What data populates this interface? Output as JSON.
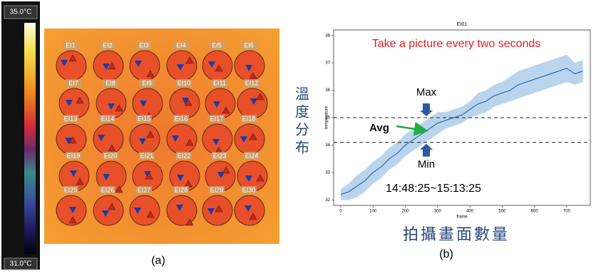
{
  "thermal_image": {
    "colorbar_max": "35.0°C",
    "colorbar_min": "31.0°C",
    "labels": [
      "EI1",
      "EI2",
      "EI3",
      "EI4",
      "EI5",
      "EI6",
      "EI7",
      "EI8",
      "EI9",
      "EI10",
      "EI11",
      "EI12",
      "EI13",
      "EI14",
      "EI15",
      "EI16",
      "EI17",
      "EI18",
      "EI19",
      "EI20",
      "EI21",
      "EI22",
      "EI23",
      "EI24",
      "EI25",
      "EI26",
      "EI27",
      "EI28",
      "EI29",
      "EI30"
    ],
    "caption": "(a)"
  },
  "side_labels": {
    "y": "溫度分布",
    "x": "拍攝畫面數量"
  },
  "caption_b": "(b)",
  "chart_data": {
    "type": "line",
    "title": "EI01",
    "x_label": "frame",
    "y_label": "temperature",
    "x": [
      0,
      25,
      50,
      75,
      100,
      125,
      150,
      175,
      200,
      225,
      250,
      275,
      300,
      325,
      350,
      375,
      400,
      425,
      450,
      475,
      500,
      525,
      550,
      575,
      600,
      625,
      650,
      675,
      700,
      725,
      750
    ],
    "values": [
      32.2,
      32.3,
      32.5,
      32.7,
      33.0,
      33.2,
      33.5,
      33.7,
      34.0,
      34.2,
      34.4,
      34.6,
      34.8,
      34.9,
      35.0,
      35.1,
      35.3,
      35.5,
      35.6,
      35.8,
      35.9,
      36.0,
      36.2,
      36.3,
      36.4,
      36.5,
      36.6,
      36.7,
      36.8,
      36.6,
      36.7
    ],
    "lower": [
      32.0,
      32.0,
      32.1,
      32.3,
      32.6,
      32.8,
      33.1,
      33.3,
      33.6,
      33.8,
      34.0,
      34.2,
      34.4,
      34.6,
      34.7,
      34.8,
      35.0,
      35.1,
      35.2,
      35.4,
      35.5,
      35.6,
      35.7,
      35.8,
      35.9,
      36.0,
      36.1,
      36.2,
      36.3,
      36.2,
      36.3
    ],
    "upper": [
      32.4,
      32.6,
      32.9,
      33.1,
      33.4,
      33.6,
      33.9,
      34.1,
      34.4,
      34.6,
      34.8,
      35.0,
      35.2,
      35.2,
      35.3,
      35.4,
      35.6,
      35.9,
      36.0,
      36.2,
      36.3,
      36.5,
      36.7,
      36.8,
      36.9,
      37.0,
      37.1,
      37.2,
      37.3,
      37.0,
      37.1
    ],
    "color": "#2b6cb0",
    "band_color": "#a9c9e8",
    "xlim": [
      -22,
      773
    ],
    "ylim": [
      31.8,
      38.2
    ],
    "xticks": [
      0,
      100,
      200,
      300,
      400,
      500,
      600,
      700
    ],
    "yticks": [
      32,
      33,
      34,
      35,
      36,
      37,
      38
    ],
    "reference_lines": [
      35.0,
      34.1
    ],
    "annotations": {
      "note": "Take a picture every two seconds",
      "max": "Max",
      "min": "Min",
      "avg": "Avg",
      "time": "14:48:25~15:13:25"
    }
  }
}
